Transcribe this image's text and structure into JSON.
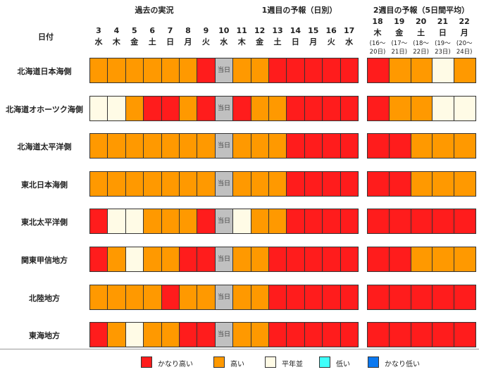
{
  "chart_data": {
    "type": "heatmap",
    "header_groups": {
      "past": "過去の実況",
      "week1": "1週目の予報（日別）",
      "week2": "2週目の予報（5日間平均）"
    },
    "row_header": "日付",
    "today_label": "当日",
    "days": [
      {
        "date": "3",
        "dow": "水"
      },
      {
        "date": "4",
        "dow": "木"
      },
      {
        "date": "5",
        "dow": "金"
      },
      {
        "date": "6",
        "dow": "土"
      },
      {
        "date": "7",
        "dow": "日"
      },
      {
        "date": "8",
        "dow": "月"
      },
      {
        "date": "9",
        "dow": "火"
      },
      {
        "date": "10",
        "dow": "水"
      },
      {
        "date": "11",
        "dow": "木"
      },
      {
        "date": "12",
        "dow": "金"
      },
      {
        "date": "13",
        "dow": "土"
      },
      {
        "date": "14",
        "dow": "日"
      },
      {
        "date": "15",
        "dow": "月"
      },
      {
        "date": "16",
        "dow": "火"
      },
      {
        "date": "17",
        "dow": "水"
      }
    ],
    "week2_days": [
      {
        "date": "18",
        "dow": "木",
        "range": "(16～20日)"
      },
      {
        "date": "19",
        "dow": "金",
        "range": "(17～21日)"
      },
      {
        "date": "20",
        "dow": "土",
        "range": "(18～22日)"
      },
      {
        "date": "21",
        "dow": "日",
        "range": "(19～23日)"
      },
      {
        "date": "22",
        "dow": "月",
        "range": "(20～24日)"
      }
    ],
    "categories_legend": [
      {
        "key": "VH",
        "label": "かなり高い",
        "color": "#ff1c1c"
      },
      {
        "key": "H",
        "label": "高い",
        "color": "#ff9900"
      },
      {
        "key": "N",
        "label": "平年並",
        "color": "#fffbe6"
      },
      {
        "key": "L",
        "label": "低い",
        "color": "#3ffffa"
      },
      {
        "key": "VL",
        "label": "かなり低い",
        "color": "#0a78f0"
      }
    ],
    "today_color": "#c0c0c0",
    "regions": [
      {
        "name": "北海道日本海側",
        "values": [
          "H",
          "H",
          "H",
          "H",
          "H",
          "H",
          "VH",
          "T",
          "H",
          "H",
          "VH",
          "VH",
          "VH",
          "VH",
          "VH"
        ],
        "week2": [
          "VH",
          "H",
          "H",
          "N",
          "H"
        ]
      },
      {
        "name": "北海道オホーツク海側",
        "values": [
          "N",
          "N",
          "H",
          "VH",
          "VH",
          "H",
          "VH",
          "T",
          "VH",
          "H",
          "H",
          "VH",
          "VH",
          "VH",
          "VH"
        ],
        "week2": [
          "VH",
          "H",
          "H",
          "N",
          "N"
        ]
      },
      {
        "name": "北海道太平洋側",
        "values": [
          "H",
          "H",
          "H",
          "H",
          "H",
          "H",
          "H",
          "T",
          "H",
          "H",
          "H",
          "VH",
          "VH",
          "VH",
          "VH"
        ],
        "week2": [
          "VH",
          "VH",
          "H",
          "H",
          "H"
        ]
      },
      {
        "name": "東北日本海側",
        "values": [
          "H",
          "H",
          "H",
          "H",
          "H",
          "H",
          "H",
          "T",
          "H",
          "H",
          "H",
          "VH",
          "VH",
          "VH",
          "VH"
        ],
        "week2": [
          "VH",
          "VH",
          "H",
          "H",
          "H"
        ]
      },
      {
        "name": "東北太平洋側",
        "values": [
          "VH",
          "N",
          "N",
          "H",
          "H",
          "H",
          "VH",
          "T",
          "N",
          "H",
          "H",
          "VH",
          "VH",
          "VH",
          "VH"
        ],
        "week2": [
          "VH",
          "VH",
          "VH",
          "VH",
          "VH"
        ]
      },
      {
        "name": "関東甲信地方",
        "values": [
          "VH",
          "H",
          "N",
          "H",
          "H",
          "VH",
          "VH",
          "T",
          "H",
          "H",
          "VH",
          "VH",
          "VH",
          "VH",
          "VH"
        ],
        "week2": [
          "VH",
          "VH",
          "H",
          "H",
          "H"
        ]
      },
      {
        "name": "北陸地方",
        "values": [
          "H",
          "H",
          "H",
          "H",
          "VH",
          "H",
          "H",
          "T",
          "H",
          "H",
          "VH",
          "VH",
          "VH",
          "VH",
          "VH"
        ],
        "week2": [
          "VH",
          "VH",
          "VH",
          "VH",
          "VH"
        ]
      },
      {
        "name": "東海地方",
        "values": [
          "VH",
          "H",
          "N",
          "H",
          "H",
          "VH",
          "VH",
          "T",
          "H",
          "H",
          "VH",
          "VH",
          "VH",
          "VH",
          "VH"
        ],
        "week2": [
          "VH",
          "VH",
          "VH",
          "VH",
          "VH"
        ]
      }
    ]
  }
}
